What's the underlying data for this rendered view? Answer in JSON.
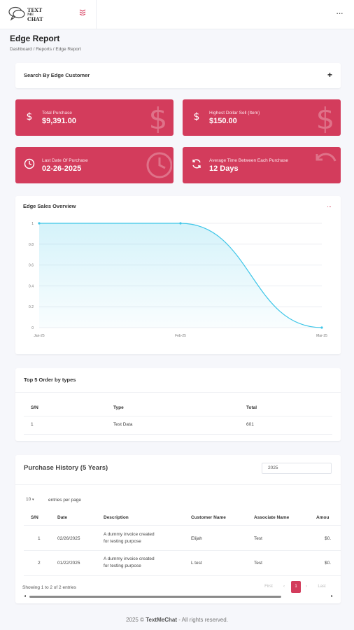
{
  "header": {
    "logo_text_1": "TEXT",
    "logo_text_2": "ME",
    "logo_text_3": "CHAT"
  },
  "page": {
    "title": "Edge Report",
    "breadcrumb": "Dashboard  /  Reports  /  Edge Report"
  },
  "search": {
    "label": "Search By Edge Customer",
    "toggle_symbol": "+"
  },
  "stats": [
    {
      "label": "Total Purchase",
      "value": "$9,391.00",
      "icon": "dollar-icon"
    },
    {
      "label": "Highest Dollar Sell (Item)",
      "value": "$150.00",
      "icon": "dollar-icon"
    },
    {
      "label": "Last Date Of Purchase",
      "value": "02-26-2025",
      "icon": "clock-icon"
    },
    {
      "label": "Average Time Between Each Purchase",
      "value": "12 Days",
      "icon": "refresh-icon"
    }
  ],
  "chart_data": {
    "type": "area",
    "title": "Edge Sales Overview",
    "categories": [
      "Jan-25",
      "Feb-25",
      "Mar-25"
    ],
    "series": [
      {
        "values": [
          1,
          1,
          0
        ]
      }
    ],
    "y_ticks": [
      "0",
      "0.2",
      "0.4",
      "0.6",
      "0.8",
      "1"
    ],
    "ylim": [
      0,
      1
    ],
    "grid": true,
    "color": "#3fc6e8"
  },
  "top5": {
    "title": "Top 5 Order by types",
    "columns": [
      "S/N",
      "Type",
      "Total"
    ],
    "rows": [
      [
        "1",
        "Test Data",
        "601"
      ]
    ]
  },
  "history": {
    "title": "Purchase History (5 Years)",
    "year_value": "2025",
    "entries_value": "10",
    "entries_label": "entries per page",
    "columns": [
      "S/N",
      "Date",
      "Description",
      "Customer Name",
      "Associate Name",
      "Amou"
    ],
    "rows": [
      {
        "sn": "1",
        "date": "02/26/2025",
        "desc1": "A dummy invoice created",
        "desc2": "for testing purpose",
        "customer": "Elijah",
        "associate": "Test",
        "amount": "$0."
      },
      {
        "sn": "2",
        "date": "01/22/2025",
        "desc1": "A dummy invoice created",
        "desc2": "for testing purpose",
        "customer": "L test",
        "associate": "Test",
        "amount": "$0."
      }
    ],
    "info": "Showing 1 to 2 of 2 entries",
    "pager": {
      "first": "First",
      "prev": "‹",
      "current": "1",
      "next": "›",
      "last": "Last"
    }
  },
  "footer": {
    "year": "2025 ©",
    "brand": "TextMeChat",
    "rest": "- All rights reserved."
  },
  "colors": {
    "accent": "#d33c5c",
    "chart_line": "#3fc6e8"
  }
}
